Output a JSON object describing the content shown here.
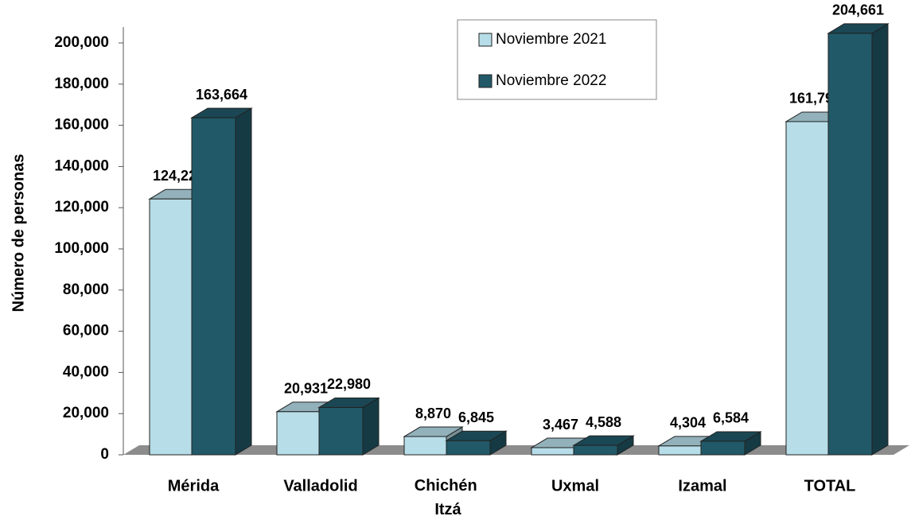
{
  "chart_data": {
    "type": "bar3d",
    "y_label": "Número de personas",
    "categories": [
      "Mérida",
      "Valladolid",
      "Chichén Itzá",
      "Uxmal",
      "Izamal",
      "TOTAL"
    ],
    "series": [
      {
        "name": "Noviembre 2021",
        "color": "#b7dde8",
        "values": [
          124220,
          20931,
          8870,
          3467,
          4304,
          161792
        ],
        "value_labels": [
          "124,220",
          "20,931",
          "8,870",
          "3,467",
          "4,304",
          "161,792"
        ]
      },
      {
        "name": "Noviembre 2022",
        "color": "#215968",
        "values": [
          163664,
          22980,
          6845,
          4588,
          6584,
          204661
        ],
        "value_labels": [
          "163,664",
          "22,980",
          "6,845",
          "4,588",
          "6,584",
          "204,661"
        ]
      }
    ],
    "ylim": [
      0,
      200000
    ],
    "yticks": [
      0,
      {
        "value": 20000,
        "label": "20,000"
      },
      {
        "value": 40000,
        "label": "40,000"
      },
      {
        "value": 60000,
        "label": "60,000"
      },
      {
        "value": 80000,
        "label": "80,000"
      },
      {
        "value": 100000,
        "label": "100,000"
      },
      {
        "value": 120000,
        "label": "120,000"
      },
      {
        "value": 140000,
        "label": "140,000"
      },
      {
        "value": 160000,
        "label": "160,000"
      },
      {
        "value": 180000,
        "label": "180,000"
      },
      {
        "value": 200000,
        "label": "200,000"
      }
    ],
    "legend": "top-center"
  }
}
